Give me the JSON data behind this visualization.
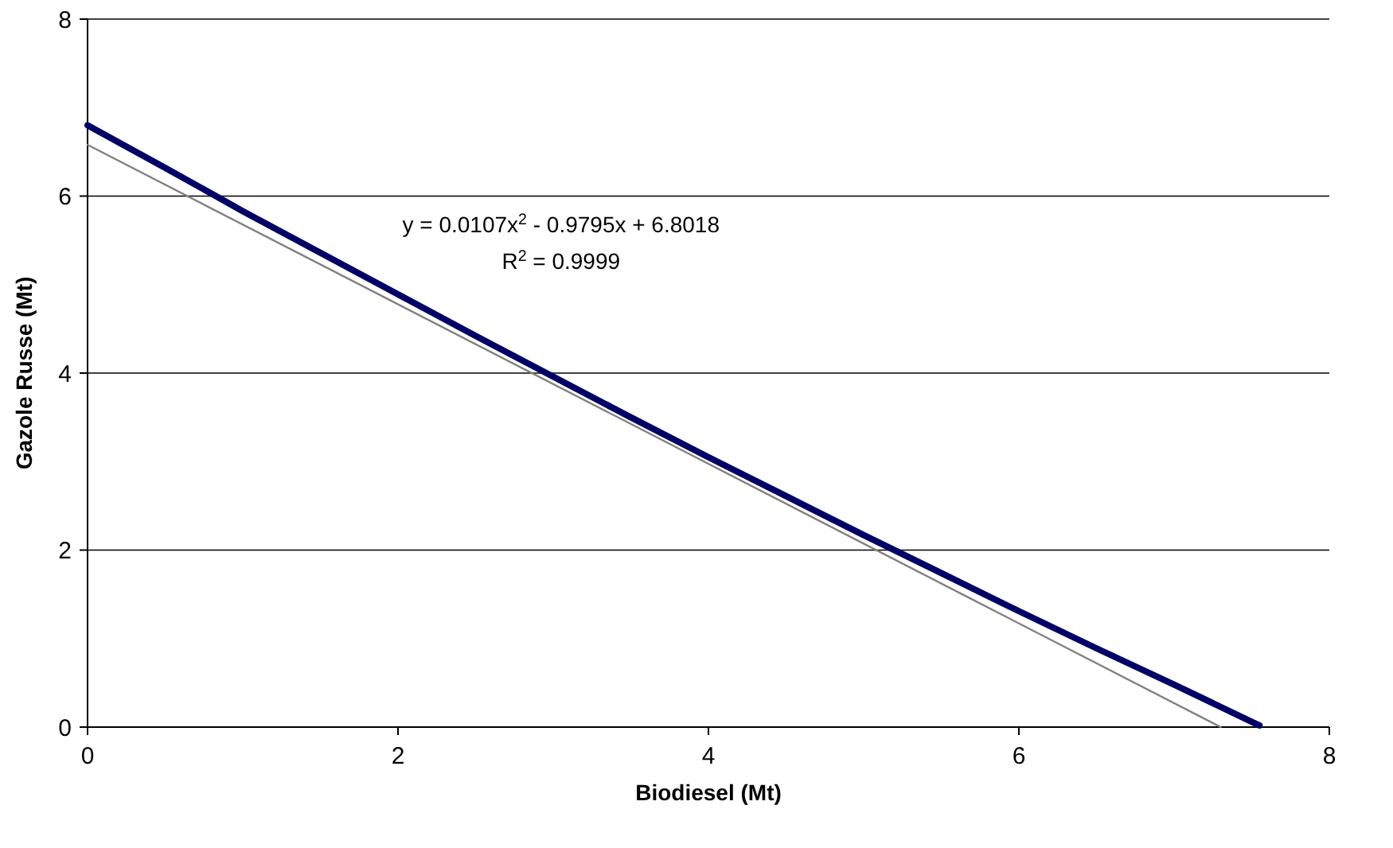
{
  "chart_data": {
    "type": "line",
    "xlabel": "Biodiesel (Mt)",
    "ylabel": "Gazole Russe (Mt)",
    "xlim": [
      0,
      8
    ],
    "ylim": [
      0,
      8
    ],
    "xticks": [
      0,
      2,
      4,
      6,
      8
    ],
    "yticks": [
      0,
      2,
      4,
      6,
      8
    ],
    "grid": "y",
    "marker": "none",
    "line_style": "solid",
    "series": [
      {
        "color": "#000066",
        "x": [
          0,
          0.5,
          1,
          1.5,
          2,
          2.5,
          3,
          3.5,
          4,
          4.5,
          5,
          5.5,
          6,
          6.5,
          7,
          7.5,
          7.55
        ],
        "values": [
          6.8,
          6.32,
          5.83,
          5.36,
          4.89,
          4.42,
          3.96,
          3.5,
          3.05,
          2.61,
          2.17,
          1.74,
          1.31,
          0.89,
          0.48,
          0.06,
          0.02
        ]
      },
      {
        "color": "#808080",
        "x": [
          0,
          7.3
        ],
        "values": [
          6.58,
          0
        ]
      }
    ],
    "annotations": [
      "y = 0.0107x$^{2}$ - 0.9795x + 6.8018",
      "R$^{2}$ = 0.9999"
    ]
  }
}
